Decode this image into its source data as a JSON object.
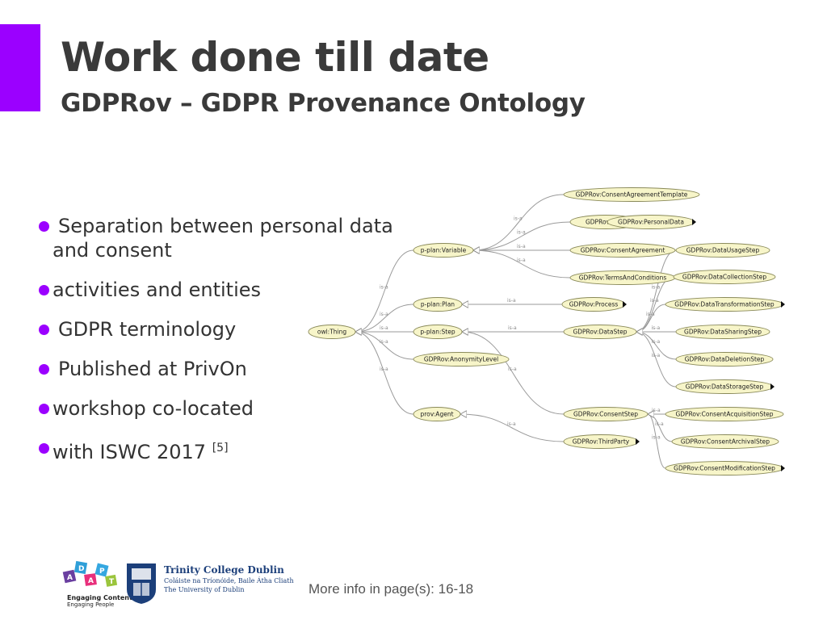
{
  "slide": {
    "title": "Work done till date",
    "subtitle": "GDPRov – GDPR Provenance Ontology",
    "accent_color": "#9b00ff"
  },
  "bullets": [
    {
      "text": "Separation between personal data",
      "space": true
    },
    {
      "text": "and consent",
      "continuation": true
    },
    {
      "text": "activities and entities",
      "space": false
    },
    {
      "text": "GDPR terminology",
      "space": true
    },
    {
      "text": "Published at PrivOn",
      "space": true
    },
    {
      "text": "workshop co-located",
      "space": false
    },
    {
      "text": "with ISWC 2017",
      "space": false,
      "ref": "[5]"
    }
  ],
  "diagram": {
    "edge_label": "is-a",
    "nodes": [
      {
        "id": "owl",
        "label": "owl:Thing"
      },
      {
        "id": "var",
        "label": "p-plan:Variable"
      },
      {
        "id": "plan",
        "label": "p-plan:Plan"
      },
      {
        "id": "step",
        "label": "p-plan:Step"
      },
      {
        "id": "anon",
        "label": "GDPRov:AnonymityLevel"
      },
      {
        "id": "agent",
        "label": "prov:Agent"
      },
      {
        "id": "cat",
        "label": "GDPRov:ConsentAgreementTemplate"
      },
      {
        "id": "data",
        "label": "GDPRov:Data"
      },
      {
        "id": "pdata",
        "label": "GDPRov:PersonalData",
        "expandable": true
      },
      {
        "id": "ca",
        "label": "GDPRov:ConsentAgreement"
      },
      {
        "id": "tac",
        "label": "GDPRov:TermsAndConditions"
      },
      {
        "id": "proc",
        "label": "GDPRov:Process",
        "expandable": true
      },
      {
        "id": "dstep",
        "label": "GDPRov:DataStep"
      },
      {
        "id": "cstep",
        "label": "GDPRov:ConsentStep"
      },
      {
        "id": "third",
        "label": "GDPRov:ThirdParty",
        "expandable": true
      },
      {
        "id": "dus",
        "label": "GDPRov:DataUsageStep"
      },
      {
        "id": "dcs",
        "label": "GDPRov:DataCollectionStep"
      },
      {
        "id": "dts",
        "label": "GDPRov:DataTransformationStep",
        "expandable": true
      },
      {
        "id": "dss",
        "label": "GDPRov:DataSharingStep"
      },
      {
        "id": "dds",
        "label": "GDPRov:DataDeletionStep"
      },
      {
        "id": "dsts",
        "label": "GDPRov:DataStorageStep",
        "expandable": true
      },
      {
        "id": "cas",
        "label": "GDPRov:ConsentAcquisitionStep"
      },
      {
        "id": "carch",
        "label": "GDPRov:ConsentArchivalStep"
      },
      {
        "id": "cms",
        "label": "GDPRov:ConsentModificationStep",
        "expandable": true
      }
    ],
    "edges": [
      [
        "var",
        "owl"
      ],
      [
        "plan",
        "owl"
      ],
      [
        "step",
        "owl"
      ],
      [
        "anon",
        "owl"
      ],
      [
        "agent",
        "owl"
      ],
      [
        "cat",
        "var"
      ],
      [
        "data",
        "var"
      ],
      [
        "ca",
        "var"
      ],
      [
        "tac",
        "var"
      ],
      [
        "pdata",
        "data"
      ],
      [
        "proc",
        "plan"
      ],
      [
        "dstep",
        "step"
      ],
      [
        "cstep",
        "step"
      ],
      [
        "third",
        "agent"
      ],
      [
        "dus",
        "dstep"
      ],
      [
        "dcs",
        "dstep"
      ],
      [
        "dts",
        "dstep"
      ],
      [
        "dss",
        "dstep"
      ],
      [
        "dds",
        "dstep"
      ],
      [
        "dsts",
        "dstep"
      ],
      [
        "cas",
        "cstep"
      ],
      [
        "carch",
        "cstep"
      ],
      [
        "cms",
        "cstep"
      ]
    ]
  },
  "footer": {
    "adapt_tagline1": "Engaging Content",
    "adapt_tagline2": "Engaging People",
    "tcd_name": "Trinity College Dublin",
    "tcd_irish": "Coláiste na Tríonóide, Baile Átha Cliath",
    "tcd_univ": "The University of Dublin",
    "more_info": "More info in page(s): 16-18"
  }
}
